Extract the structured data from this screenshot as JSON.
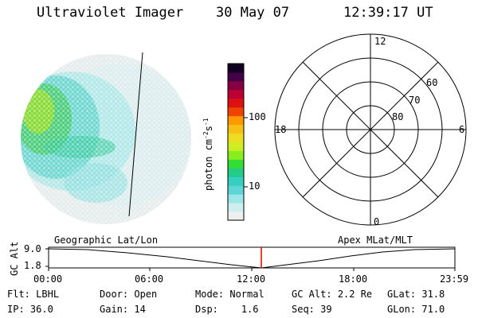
{
  "header": {
    "title": "Ultraviolet Imager",
    "date": "30 May 07",
    "time": "12:39:17 UT"
  },
  "colorbar": {
    "label": "photon cm",
    "label_exp1": "-2",
    "label_s": "s",
    "label_exp2": "-1",
    "ticks": [
      "100",
      "10"
    ],
    "colors": [
      "#eeeeee",
      "#cdeeee",
      "#9be6e6",
      "#5fd6d6",
      "#35cfc1",
      "#22cc88",
      "#33dd33",
      "#88ee22",
      "#ccee22",
      "#eedd22",
      "#f6c016",
      "#ff9900",
      "#ee4400",
      "#dd1111",
      "#bb0033",
      "#880044",
      "#440044",
      "#110022"
    ]
  },
  "polar": {
    "labels": {
      "top": "12",
      "bottom": "0",
      "left": "18",
      "right": "6"
    },
    "lat_labels": [
      "60",
      "70",
      "80"
    ]
  },
  "timeline": {
    "left_label": "Geographic Lat/Lon",
    "right_label": "Apex MLat/MLT",
    "axis_label": "GC Alt",
    "y_top": "9.0",
    "y_bottom": "1.8",
    "x_ticks": [
      "00:00",
      "06:00",
      "12:00",
      "18:00",
      "23:59"
    ],
    "marker_color": "#dd0000"
  },
  "info": {
    "row1": [
      {
        "key": "Flt:",
        "value": "LBHL"
      },
      {
        "key": "Door:",
        "value": "Open"
      },
      {
        "key": "Mode:",
        "value": "Normal"
      },
      {
        "key": "GC Alt:",
        "value": "2.2 Re"
      },
      {
        "key": "GLat:",
        "value": "31.8"
      }
    ],
    "row2": [
      {
        "key": "IP:",
        "value": "36.0"
      },
      {
        "key": "Gain:",
        "value": "14"
      },
      {
        "key": "Dsp:",
        "value": "1.6"
      },
      {
        "key": "Seq:",
        "value": "39"
      },
      {
        "key": "GLon:",
        "value": "71.0"
      }
    ]
  }
}
